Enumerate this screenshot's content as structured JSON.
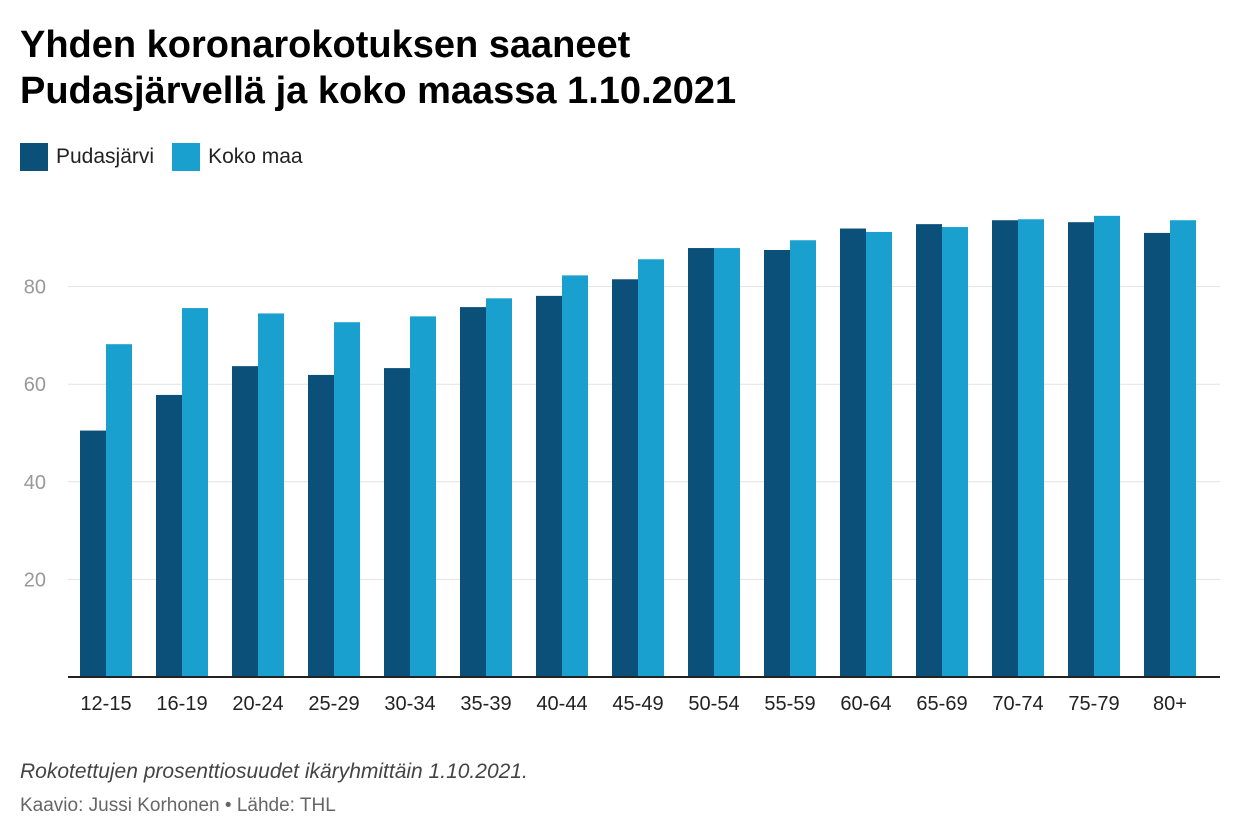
{
  "title_line1": "Yhden koronarokotuksen saaneet",
  "title_line2": "Pudasjärvellä ja koko maassa 1.10.2021",
  "legend": [
    {
      "label": "Pudasjärvi",
      "color": "#0b5079"
    },
    {
      "label": "Koko maa",
      "color": "#1aa0cf"
    }
  ],
  "caption": "Rokotettujen prosenttiosuudet ikäryhmittäin 1.10.2021.",
  "source": "Kaavio: Jussi Korhonen • Lähde: THL",
  "chart_data": {
    "type": "bar",
    "title": "Yhden koronarokotuksen saaneet Pudasjärvellä ja koko maassa 1.10.2021",
    "xlabel": "",
    "ylabel": "",
    "categories": [
      "12-15",
      "16-19",
      "20-24",
      "25-29",
      "30-34",
      "35-39",
      "40-44",
      "45-49",
      "50-54",
      "55-59",
      "60-64",
      "65-69",
      "70-74",
      "75-79",
      "80+"
    ],
    "series": [
      {
        "name": "Pudasjärvi",
        "color": "#0b5079",
        "values": [
          50.5,
          57.8,
          63.7,
          61.9,
          63.3,
          75.8,
          78.1,
          81.5,
          87.9,
          87.5,
          91.9,
          92.8,
          93.6,
          93.2,
          91.0
        ]
      },
      {
        "name": "Koko maa",
        "color": "#1aa0cf",
        "values": [
          68.2,
          75.6,
          74.5,
          72.7,
          73.9,
          77.6,
          82.3,
          85.6,
          87.9,
          89.5,
          91.2,
          92.2,
          93.8,
          94.5,
          93.6
        ]
      }
    ],
    "ylim": [
      0,
      100
    ],
    "yticks": [
      20,
      40,
      60,
      80
    ],
    "grid": true,
    "legend_position": "top-left"
  }
}
